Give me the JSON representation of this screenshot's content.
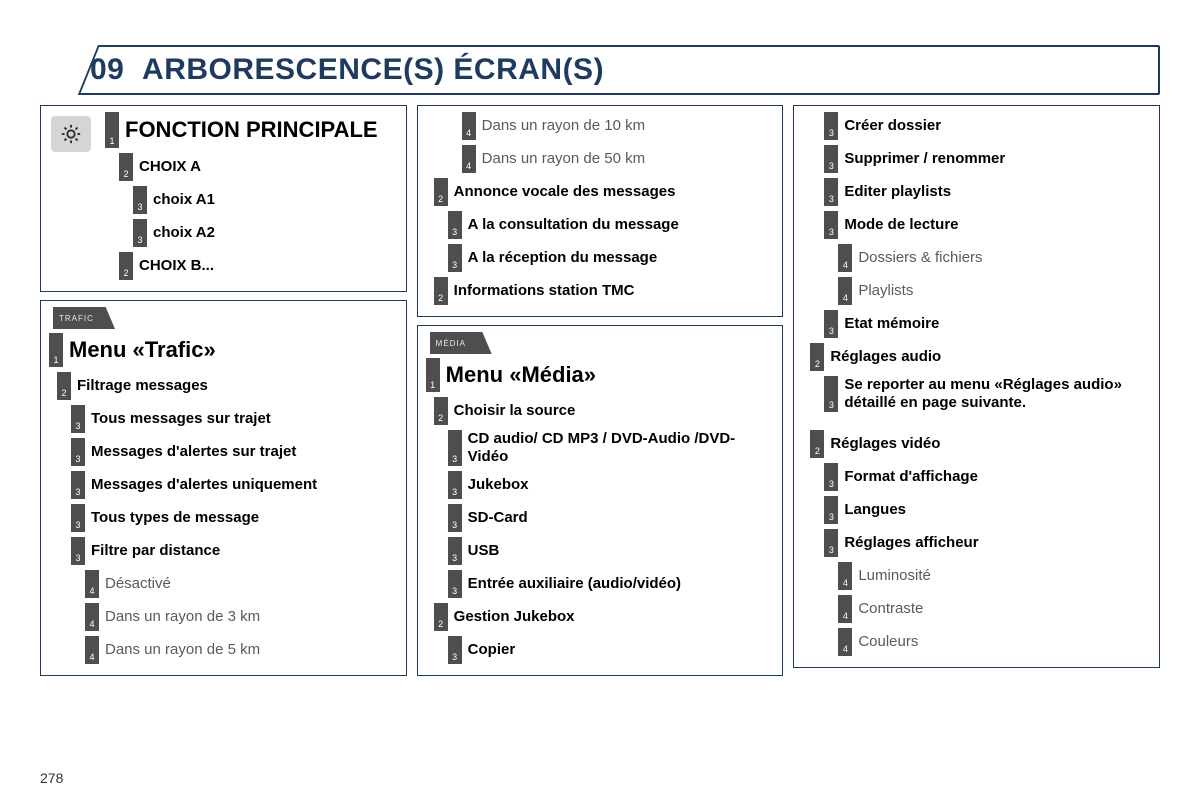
{
  "colors": {
    "frame": "#1f3a5f",
    "chip_bg": "#4e4e4e",
    "chip_fg": "#ffffff",
    "light_text": "#5a5a5a",
    "badge_bg": "#d5d5d5"
  },
  "header": {
    "number": "09",
    "title": "ARBORESCENCE(S) ÉCRAN(S)"
  },
  "pageNumber": "278",
  "principal": {
    "title": "FONCTION PRINCIPALE",
    "items": [
      {
        "level": 2,
        "num": "2",
        "label": "CHOIX A",
        "bold": true
      },
      {
        "level": 3,
        "num": "3",
        "label": "choix A1",
        "bold": true
      },
      {
        "level": 3,
        "num": "3",
        "label": "choix A2",
        "bold": true
      },
      {
        "level": 2,
        "num": "2",
        "label": "CHOIX B...",
        "bold": true
      }
    ]
  },
  "trafic": {
    "badge": "TRAFIC",
    "title": "Menu «Trafic»",
    "items": [
      {
        "level": 2,
        "num": "2",
        "label": "Filtrage messages",
        "bold": true
      },
      {
        "level": 3,
        "num": "3",
        "label": "Tous messages sur trajet",
        "bold": true
      },
      {
        "level": 3,
        "num": "3",
        "label": "Messages d'alertes sur trajet",
        "bold": true
      },
      {
        "level": 3,
        "num": "3",
        "label": "Messages d'alertes uniquement",
        "bold": true
      },
      {
        "level": 3,
        "num": "3",
        "label": "Tous types de message",
        "bold": true
      },
      {
        "level": 3,
        "num": "3",
        "label": "Filtre par distance",
        "bold": true
      },
      {
        "level": 4,
        "num": "4",
        "label": "Désactivé",
        "bold": false
      },
      {
        "level": 4,
        "num": "4",
        "label": "Dans un rayon de 3 km",
        "bold": false
      },
      {
        "level": 4,
        "num": "4",
        "label": "Dans un rayon de 5 km",
        "bold": false
      }
    ]
  },
  "traficCont": {
    "items": [
      {
        "level": 4,
        "num": "4",
        "label": "Dans un rayon de 10 km",
        "bold": false
      },
      {
        "level": 4,
        "num": "4",
        "label": "Dans un rayon de 50 km",
        "bold": false
      },
      {
        "level": 2,
        "num": "2",
        "label": "Annonce vocale des messages",
        "bold": true
      },
      {
        "level": 3,
        "num": "3",
        "label": "A la consultation du message",
        "bold": true
      },
      {
        "level": 3,
        "num": "3",
        "label": "A la réception du message",
        "bold": true
      },
      {
        "level": 2,
        "num": "2",
        "label": "Informations station TMC",
        "bold": true
      }
    ]
  },
  "media": {
    "badge": "MÉDIA",
    "title": "Menu «Média»",
    "items": [
      {
        "level": 2,
        "num": "2",
        "label": "Choisir la source",
        "bold": true
      },
      {
        "level": 3,
        "num": "3",
        "label": "CD audio/ CD MP3 / DVD-Audio /DVD-Vidéo",
        "bold": true
      },
      {
        "level": 3,
        "num": "3",
        "label": "Jukebox",
        "bold": true
      },
      {
        "level": 3,
        "num": "3",
        "label": "SD-Card",
        "bold": true
      },
      {
        "level": 3,
        "num": "3",
        "label": "USB",
        "bold": true
      },
      {
        "level": 3,
        "num": "3",
        "label": "Entrée auxiliaire (audio/vidéo)",
        "bold": true
      },
      {
        "level": 2,
        "num": "2",
        "label": "Gestion Jukebox",
        "bold": true
      },
      {
        "level": 3,
        "num": "3",
        "label": "Copier",
        "bold": true
      }
    ]
  },
  "mediaCont": {
    "items": [
      {
        "level": 3,
        "num": "3",
        "label": "Créer dossier",
        "bold": true
      },
      {
        "level": 3,
        "num": "3",
        "label": "Supprimer / renommer",
        "bold": true
      },
      {
        "level": 3,
        "num": "3",
        "label": "Editer playlists",
        "bold": true
      },
      {
        "level": 3,
        "num": "3",
        "label": "Mode de lecture",
        "bold": true
      },
      {
        "level": 4,
        "num": "4",
        "label": "Dossiers & fichiers",
        "bold": false
      },
      {
        "level": 4,
        "num": "4",
        "label": "Playlists",
        "bold": false
      },
      {
        "level": 3,
        "num": "3",
        "label": "Etat mémoire",
        "bold": true
      },
      {
        "level": 2,
        "num": "2",
        "label": "Réglages audio",
        "bold": true
      },
      {
        "level": 3,
        "num": "3",
        "label": "Se reporter au menu «Réglages audio» détaillé en page suivante.",
        "bold": true
      },
      {
        "level": 2,
        "num": "2",
        "label": "Réglages vidéo",
        "bold": true,
        "gapBefore": true
      },
      {
        "level": 3,
        "num": "3",
        "label": "Format d'affichage",
        "bold": true
      },
      {
        "level": 3,
        "num": "3",
        "label": "Langues",
        "bold": true
      },
      {
        "level": 3,
        "num": "3",
        "label": "Réglages afficheur",
        "bold": true
      },
      {
        "level": 4,
        "num": "4",
        "label": "Luminosité",
        "bold": false
      },
      {
        "level": 4,
        "num": "4",
        "label": "Contraste",
        "bold": false
      },
      {
        "level": 4,
        "num": "4",
        "label": "Couleurs",
        "bold": false
      }
    ]
  }
}
